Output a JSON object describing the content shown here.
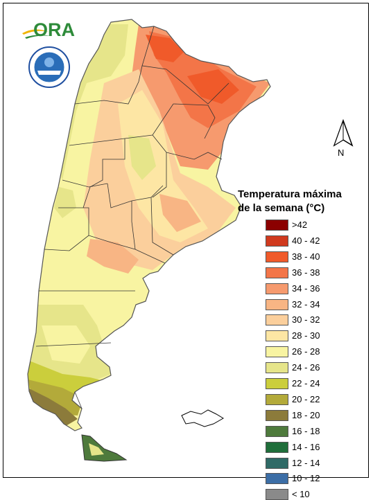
{
  "map": {
    "country": "Argentina",
    "colors": {
      "warm_north_east": "#f26c3b",
      "hot": "#f78a5a",
      "mid": "#fbc894",
      "light": "#fbe9a8",
      "yellow": "#f2ef9c",
      "green_yellow": "#d8de75",
      "olive": "#a6a34a",
      "brown": "#8f7a3e",
      "dark_green": "#3c7a4a",
      "teal": "#2e7a6a"
    }
  },
  "logos": {
    "ora": {
      "text": "ORA",
      "color": "#2e8b3a"
    },
    "smn": {
      "icon": "smn-seal-icon"
    }
  },
  "north_arrow": {
    "label": "N"
  },
  "legend": {
    "title_line1": "Temperatura máxima",
    "title_line2": "de la semana (°C)",
    "items": [
      {
        "label": ">42",
        "color": "#8b0000"
      },
      {
        "label": "40 - 42",
        "color": "#d03a1e"
      },
      {
        "label": "38 - 40",
        "color": "#f05a2a"
      },
      {
        "label": "36 - 38",
        "color": "#f37548"
      },
      {
        "label": "34 - 36",
        "color": "#f69a6e"
      },
      {
        "label": "32 - 34",
        "color": "#f8b584"
      },
      {
        "label": "30 - 32",
        "color": "#fbcf9c"
      },
      {
        "label": "28 - 30",
        "color": "#fde6a4"
      },
      {
        "label": "26 - 28",
        "color": "#f8f4a2"
      },
      {
        "label": "24 - 26",
        "color": "#e6e58a"
      },
      {
        "label": "22 - 24",
        "color": "#cbce3c"
      },
      {
        "label": "20 - 22",
        "color": "#b3aa3a"
      },
      {
        "label": "18 - 20",
        "color": "#8c7b3b"
      },
      {
        "label": "16 - 18",
        "color": "#4e7a3c"
      },
      {
        "label": "14 - 16",
        "color": "#1f6e3a"
      },
      {
        "label": "12 - 14",
        "color": "#2f6a66"
      },
      {
        "label": "10 - 12",
        "color": "#3c6ea6"
      },
      {
        "label": "< 10",
        "color": "#8a8a8a"
      }
    ]
  }
}
